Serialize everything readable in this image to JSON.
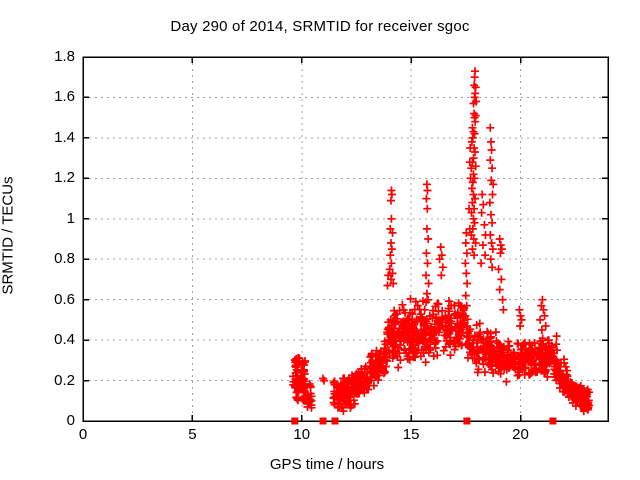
{
  "chart_data": {
    "type": "scatter",
    "title": "Day 290 of 2014, SRMTID for receiver sgoc",
    "xlabel": "GPS time / hours",
    "ylabel": "SRMTID / TECUs",
    "xlim": [
      0,
      24
    ],
    "ylim": [
      0,
      1.8
    ],
    "grid": true,
    "legend": "none",
    "marker": {
      "shape": "plus",
      "color": "#ff0000",
      "size": 8
    },
    "grid_color": "#a0a0a0",
    "border_color": "#000000",
    "xticks": [
      {
        "v": 0,
        "label": "0"
      },
      {
        "v": 5,
        "label": "5"
      },
      {
        "v": 10,
        "label": "10"
      },
      {
        "v": 15,
        "label": "15"
      },
      {
        "v": 20,
        "label": "20"
      }
    ],
    "yticks": [
      {
        "v": 0,
        "label": "0"
      },
      {
        "v": 0.2,
        "label": "0.2"
      },
      {
        "v": 0.4,
        "label": "0.4"
      },
      {
        "v": 0.6,
        "label": "0.6"
      },
      {
        "v": 0.8,
        "label": "0.8"
      },
      {
        "v": 1,
        "label": "1"
      },
      {
        "v": 1.2,
        "label": "1.2"
      },
      {
        "v": 1.4,
        "label": "1.4"
      },
      {
        "v": 1.6,
        "label": "1.6"
      },
      {
        "v": 1.8,
        "label": "1.8"
      }
    ],
    "zero_markers": {
      "shape": "filled-square",
      "color": "#ff0000",
      "size": 7,
      "x": [
        9.68,
        10.97,
        11.52,
        17.55,
        21.48
      ],
      "y": 0
    },
    "series": [
      {
        "name": "SRMTID",
        "explicit_points": [
          [
            17.92,
            1.73
          ],
          [
            17.9,
            1.7
          ],
          [
            17.88,
            1.66
          ],
          [
            17.95,
            1.65
          ],
          [
            17.93,
            1.62
          ],
          [
            17.9,
            1.6
          ],
          [
            17.97,
            1.58
          ],
          [
            17.85,
            1.57
          ],
          [
            17.88,
            1.52
          ],
          [
            17.95,
            1.51
          ],
          [
            17.9,
            1.5
          ],
          [
            17.93,
            1.48
          ],
          [
            17.8,
            1.45
          ],
          [
            17.85,
            1.43
          ],
          [
            17.9,
            1.42
          ],
          [
            17.82,
            1.4
          ],
          [
            17.78,
            1.38
          ],
          [
            17.88,
            1.35
          ],
          [
            17.92,
            1.33
          ],
          [
            17.85,
            1.3
          ],
          [
            17.8,
            1.28
          ],
          [
            17.95,
            1.26
          ],
          [
            17.75,
            1.25
          ],
          [
            17.85,
            1.22
          ],
          [
            17.9,
            1.2
          ],
          [
            17.82,
            1.18
          ],
          [
            17.78,
            1.15
          ],
          [
            17.85,
            1.12
          ],
          [
            17.92,
            1.1
          ],
          [
            17.8,
            1.08
          ],
          [
            17.88,
            1.05
          ],
          [
            17.76,
            1.03
          ],
          [
            17.85,
            1.0
          ],
          [
            17.9,
            0.98
          ],
          [
            17.82,
            0.95
          ],
          [
            17.75,
            0.92
          ],
          [
            17.86,
            0.9
          ],
          [
            17.95,
            0.88
          ],
          [
            17.8,
            0.85
          ],
          [
            17.88,
            0.82
          ],
          [
            17.7,
            1.35
          ],
          [
            17.68,
            1.28
          ],
          [
            17.72,
            1.2
          ],
          [
            17.65,
            1.05
          ],
          [
            17.68,
            0.95
          ],
          [
            18.62,
            1.45
          ],
          [
            18.65,
            1.38
          ],
          [
            18.68,
            1.34
          ],
          [
            18.62,
            1.29
          ],
          [
            18.7,
            1.25
          ],
          [
            18.66,
            1.19
          ],
          [
            18.72,
            1.12
          ],
          [
            18.6,
            1.08
          ],
          [
            18.75,
            1.17
          ],
          [
            18.65,
            1.02
          ],
          [
            18.7,
            0.98
          ],
          [
            18.62,
            0.92
          ],
          [
            18.68,
            0.88
          ],
          [
            18.74,
            0.85
          ],
          [
            18.64,
            0.8
          ],
          [
            18.7,
            0.76
          ],
          [
            18.25,
            1.12
          ],
          [
            18.3,
            1.07
          ],
          [
            18.22,
            1.03
          ],
          [
            18.35,
            0.97
          ],
          [
            18.4,
            0.92
          ],
          [
            18.28,
            0.87
          ],
          [
            18.38,
            0.82
          ],
          [
            18.2,
            0.78
          ],
          [
            14.1,
            1.14
          ],
          [
            14.12,
            1.12
          ],
          [
            14.08,
            1.09
          ],
          [
            14.1,
            1.0
          ],
          [
            14.05,
            0.95
          ],
          [
            14.15,
            0.93
          ],
          [
            14.08,
            0.88
          ],
          [
            14.12,
            0.85
          ],
          [
            14.05,
            0.82
          ],
          [
            14.1,
            0.78
          ],
          [
            14.02,
            0.75
          ],
          [
            14.15,
            0.73
          ],
          [
            14.08,
            0.7
          ],
          [
            14.18,
            0.68
          ],
          [
            13.95,
            0.72
          ],
          [
            13.92,
            0.67
          ],
          [
            15.72,
            1.17
          ],
          [
            15.75,
            1.14
          ],
          [
            15.7,
            1.1
          ],
          [
            15.74,
            1.05
          ],
          [
            15.72,
            0.95
          ],
          [
            15.78,
            0.9
          ],
          [
            15.7,
            0.83
          ],
          [
            15.75,
            0.78
          ],
          [
            15.68,
            0.72
          ],
          [
            15.8,
            0.68
          ],
          [
            15.72,
            0.63
          ],
          [
            17.52,
            0.93
          ],
          [
            17.5,
            0.88
          ],
          [
            17.55,
            0.83
          ],
          [
            17.48,
            0.78
          ],
          [
            17.52,
            0.73
          ],
          [
            17.56,
            0.68
          ],
          [
            17.5,
            0.62
          ],
          [
            17.54,
            0.57
          ],
          [
            17.48,
            0.52
          ],
          [
            17.52,
            0.47
          ],
          [
            17.55,
            0.42
          ],
          [
            17.5,
            0.38
          ],
          [
            19.05,
            0.9
          ],
          [
            19.1,
            0.87
          ],
          [
            19.15,
            0.85
          ],
          [
            19.08,
            0.83
          ],
          [
            19.0,
            0.75
          ],
          [
            19.12,
            0.7
          ],
          [
            19.05,
            0.65
          ],
          [
            19.18,
            0.6
          ],
          [
            19.22,
            0.55
          ],
          [
            16.35,
            0.86
          ],
          [
            16.4,
            0.82
          ],
          [
            16.3,
            0.8
          ],
          [
            16.45,
            0.76
          ],
          [
            16.38,
            0.72
          ],
          [
            21.0,
            0.6
          ],
          [
            20.95,
            0.57
          ],
          [
            21.05,
            0.55
          ],
          [
            21.1,
            0.52
          ],
          [
            20.9,
            0.5
          ],
          [
            21.15,
            0.47
          ],
          [
            20.98,
            0.45
          ],
          [
            19.95,
            0.55
          ],
          [
            20.0,
            0.52
          ],
          [
            20.05,
            0.5
          ],
          [
            19.98,
            0.47
          ],
          [
            21.65,
            0.42
          ],
          [
            21.63,
            0.38
          ],
          [
            21.67,
            0.35
          ],
          [
            21.64,
            0.3
          ],
          [
            21.68,
            0.27
          ],
          [
            10.97,
            0.21
          ],
          [
            11.02,
            0.2
          ]
        ],
        "cluster_descriptors": [
          {
            "n": 85,
            "x": [
              9.6,
              10.15
            ],
            "center": [
              0.2,
              0.2
            ],
            "spread": 0.13,
            "clip": [
              0.06,
              0.34
            ]
          },
          {
            "n": 18,
            "x": [
              10.25,
              10.45
            ],
            "center": [
              0.12,
              0.12
            ],
            "spread": 0.08,
            "clip": [
              0.04,
              0.2
            ]
          },
          {
            "n": 85,
            "x": [
              11.45,
              12.25
            ],
            "center": [
              0.13,
              0.14
            ],
            "spread": 0.1,
            "clip": [
              0.03,
              0.27
            ]
          },
          {
            "n": 95,
            "x": [
              12.25,
              13.1
            ],
            "center": [
              0.16,
              0.2
            ],
            "spread": 0.09,
            "clip": [
              0.05,
              0.31
            ]
          },
          {
            "n": 95,
            "x": [
              13.1,
              13.9
            ],
            "center": [
              0.24,
              0.33
            ],
            "spread": 0.1,
            "clip": [
              0.1,
              0.5
            ]
          },
          {
            "n": 150,
            "x": [
              13.9,
              16.6
            ],
            "center": [
              0.38,
              0.5
            ],
            "spread": 0.2,
            "clip": [
              0.2,
              0.75
            ]
          },
          {
            "n": 120,
            "x": [
              14.1,
              16.2
            ],
            "center": [
              0.42,
              0.42
            ],
            "spread": 0.12,
            "clip": [
              0.25,
              0.6
            ]
          },
          {
            "n": 70,
            "x": [
              16.6,
              17.45
            ],
            "center": [
              0.48,
              0.45
            ],
            "spread": 0.15,
            "clip": [
              0.28,
              0.73
            ]
          },
          {
            "n": 70,
            "x": [
              17.55,
              18.5
            ],
            "center": [
              0.4,
              0.35
            ],
            "spread": 0.15,
            "clip": [
              0.2,
              0.65
            ]
          },
          {
            "n": 90,
            "x": [
              18.5,
              19.6
            ],
            "center": [
              0.35,
              0.3
            ],
            "spread": 0.12,
            "clip": [
              0.18,
              0.6
            ]
          },
          {
            "n": 170,
            "x": [
              19.6,
              21.55
            ],
            "center": [
              0.3,
              0.32
            ],
            "spread": 0.11,
            "clip": [
              0.17,
              0.5
            ]
          },
          {
            "n": 45,
            "x": [
              21.55,
              22.15
            ],
            "center": [
              0.26,
              0.2
            ],
            "spread": 0.1,
            "clip": [
              0.08,
              0.45
            ]
          },
          {
            "n": 115,
            "x": [
              22.0,
              23.15
            ],
            "center": [
              0.17,
              0.1
            ],
            "spread": 0.07,
            "clip": [
              0.04,
              0.3
            ]
          }
        ]
      }
    ]
  }
}
